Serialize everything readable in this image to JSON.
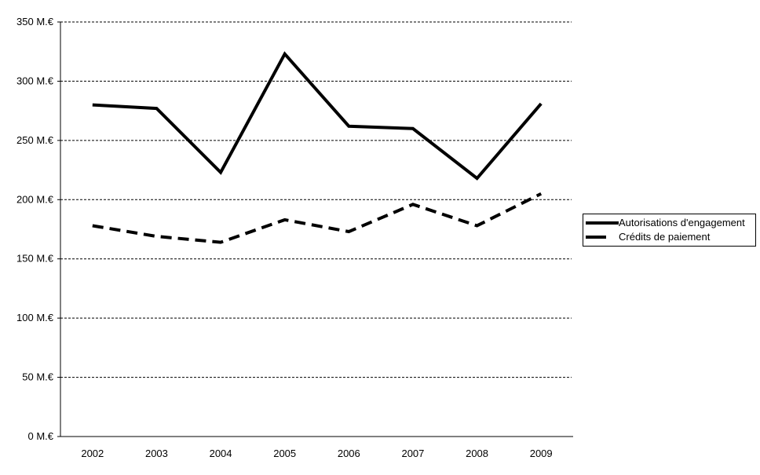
{
  "chart_data": {
    "type": "line",
    "title": "",
    "xlabel": "",
    "ylabel": "",
    "categories": [
      "2002",
      "2003",
      "2004",
      "2005",
      "2006",
      "2007",
      "2008",
      "2009"
    ],
    "series": [
      {
        "name": "Autorisations d'engagement",
        "line_style": "solid",
        "color": "#000000",
        "values": [
          280,
          277,
          223,
          323,
          262,
          260,
          218,
          281
        ]
      },
      {
        "name": "Crédits de paiement",
        "line_style": "dashed",
        "color": "#000000",
        "values": [
          178,
          169,
          164,
          183,
          173,
          196,
          178,
          205
        ]
      }
    ],
    "y_axis": {
      "unit": "M.€",
      "range": [
        0,
        350
      ],
      "tick_step": 50,
      "ticks": [
        {
          "value": 0,
          "label": "0 M.€"
        },
        {
          "value": 50,
          "label": "50 M.€"
        },
        {
          "value": 100,
          "label": "100 M.€"
        },
        {
          "value": 150,
          "label": "150 M.€"
        },
        {
          "value": 200,
          "label": "200 M.€"
        },
        {
          "value": 250,
          "label": "250 M.€"
        },
        {
          "value": 300,
          "label": "300 M.€"
        },
        {
          "value": 350,
          "label": "350 M.€"
        }
      ]
    },
    "grid": "horizontal-dotted",
    "legend_position": "right",
    "background_color": "#ffffff",
    "axis_color": "#000000"
  }
}
